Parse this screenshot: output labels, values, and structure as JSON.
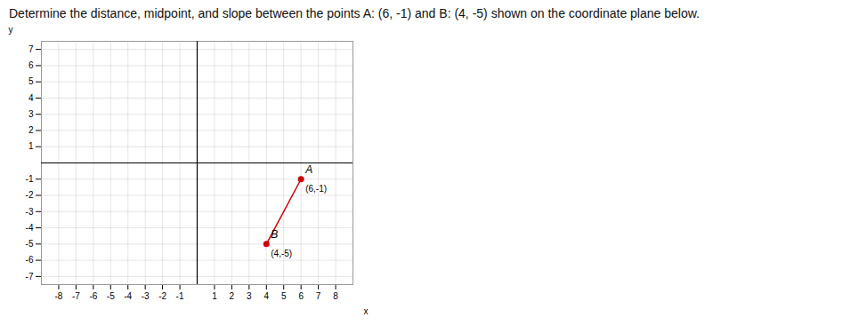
{
  "chart_data": {
    "type": "line",
    "title": "Determine the distance, midpoint, and slope between the points A: (6, -1) and B: (4, -5) shown on the coordinate plane below.",
    "x": [
      6,
      4
    ],
    "values": [
      -1,
      -5
    ],
    "color": "#cc0000",
    "marker": "circle",
    "data_labels": true,
    "value_labels": [
      "(6,-1)",
      "(4,-5)"
    ],
    "annotations": [
      {
        "text": "A",
        "x": 6,
        "y": -1
      },
      {
        "text": "B",
        "x": 4,
        "y": -5
      }
    ],
    "x_label": "x",
    "y_label": "y",
    "xlim": [
      -9,
      9
    ],
    "ylim": [
      -7.5,
      7.5
    ],
    "xticks": [
      -8,
      -7,
      -6,
      -5,
      -4,
      -3,
      -2,
      -1,
      1,
      2,
      3,
      4,
      5,
      6,
      7,
      8
    ],
    "yticks": [
      -7,
      -6,
      -5,
      -4,
      -3,
      -2,
      -1,
      1,
      2,
      3,
      4,
      5,
      6,
      7
    ],
    "grid": true
  }
}
